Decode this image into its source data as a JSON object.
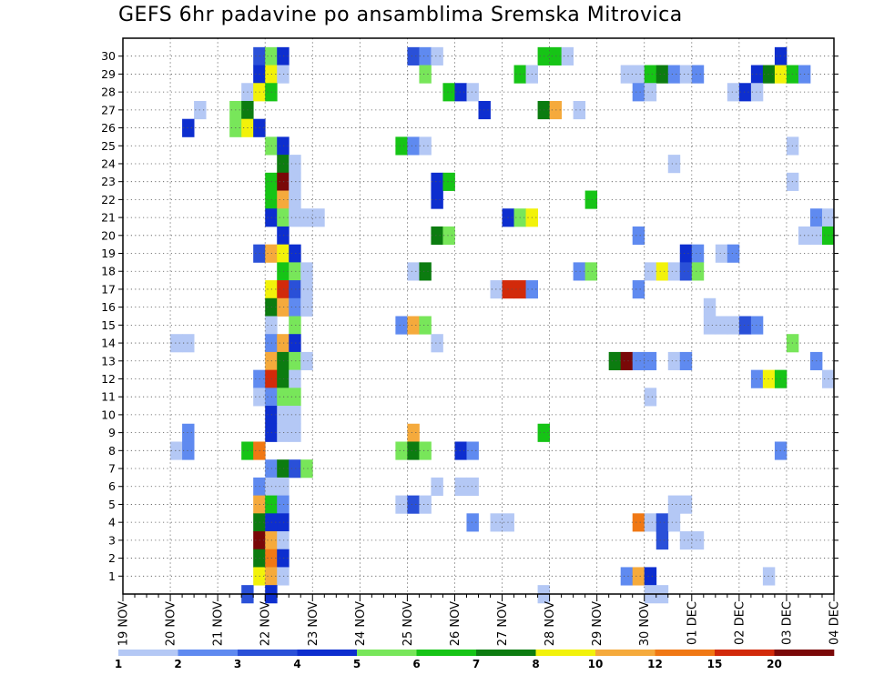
{
  "chart_data": {
    "type": "heatmap",
    "title": "GEFS 6hr padavine po ansamblima Sremska Mitrovica",
    "x_labels": [
      "19 NOV",
      "20 NOV",
      "21 NOV",
      "22 NOV",
      "23 NOV",
      "24 NOV",
      "25 NOV",
      "26 NOV",
      "27 NOV",
      "28 NOV",
      "29 NOV",
      "30 NOV",
      "01 DEC",
      "02 DEC",
      "03 DEC",
      "04 DEC"
    ],
    "y_labels": [
      "1",
      "2",
      "3",
      "4",
      "5",
      "6",
      "7",
      "8",
      "9",
      "10",
      "11",
      "12",
      "13",
      "14",
      "15",
      "16",
      "17",
      "18",
      "19",
      "20",
      "21",
      "22",
      "23",
      "24",
      "25",
      "26",
      "27",
      "28",
      "29",
      "30"
    ],
    "x_range": [
      "19 NOV 00",
      "04 DEC 00"
    ],
    "time_step_hours": 6,
    "members": 30,
    "grid": "dotted",
    "colorbar": {
      "position": "bottom",
      "labels": [
        "1",
        "2",
        "3",
        "4",
        "5",
        "6",
        "7",
        "8",
        "10",
        "12",
        "15",
        "20"
      ],
      "colors": [
        "#b4c8f5",
        "#5f8af0",
        "#2a50d8",
        "#0d2ecf",
        "#78e65a",
        "#16c416",
        "#0c7c10",
        "#f2f20a",
        "#f5aa3c",
        "#f07814",
        "#d22a0a",
        "#7a0808"
      ]
    },
    "cells": [
      [
        "30",
        "21 NOV 18",
        3
      ],
      [
        "30",
        "22 NOV 00",
        5
      ],
      [
        "30",
        "22 NOV 06",
        4
      ],
      [
        "30",
        "25 NOV 00",
        3
      ],
      [
        "30",
        "25 NOV 06",
        2
      ],
      [
        "30",
        "25 NOV 12",
        1
      ],
      [
        "30",
        "27 NOV 18",
        6
      ],
      [
        "30",
        "28 NOV 00",
        6
      ],
      [
        "30",
        "28 NOV 06",
        1
      ],
      [
        "30",
        "02 DEC 18",
        4
      ],
      [
        "29",
        "21 NOV 18",
        4
      ],
      [
        "29",
        "22 NOV 00",
        8
      ],
      [
        "29",
        "22 NOV 06",
        1
      ],
      [
        "29",
        "25 NOV 06",
        5
      ],
      [
        "29",
        "27 NOV 06",
        6
      ],
      [
        "29",
        "27 NOV 12",
        1
      ],
      [
        "29",
        "29 NOV 12",
        1
      ],
      [
        "29",
        "29 NOV 18",
        1
      ],
      [
        "29",
        "30 NOV 00",
        6
      ],
      [
        "29",
        "30 NOV 06",
        7
      ],
      [
        "29",
        "30 NOV 12",
        2
      ],
      [
        "29",
        "30 NOV 18",
        1
      ],
      [
        "29",
        "01 DEC 00",
        2
      ],
      [
        "29",
        "02 DEC 06",
        4
      ],
      [
        "29",
        "02 DEC 12",
        7
      ],
      [
        "29",
        "02 DEC 18",
        8
      ],
      [
        "29",
        "03 DEC 00",
        6
      ],
      [
        "29",
        "03 DEC 06",
        2
      ],
      [
        "28",
        "21 NOV 12",
        1
      ],
      [
        "28",
        "21 NOV 18",
        8
      ],
      [
        "28",
        "22 NOV 00",
        6
      ],
      [
        "28",
        "25 NOV 18",
        6
      ],
      [
        "28",
        "26 NOV 00",
        4
      ],
      [
        "28",
        "26 NOV 06",
        1
      ],
      [
        "28",
        "29 NOV 18",
        2
      ],
      [
        "28",
        "30 NOV 00",
        1
      ],
      [
        "28",
        "01 DEC 18",
        1
      ],
      [
        "28",
        "02 DEC 00",
        4
      ],
      [
        "28",
        "02 DEC 06",
        1
      ],
      [
        "27",
        "20 NOV 12",
        1
      ],
      [
        "27",
        "21 NOV 06",
        5
      ],
      [
        "27",
        "21 NOV 12",
        7
      ],
      [
        "27",
        "26 NOV 12",
        4
      ],
      [
        "27",
        "27 NOV 18",
        7
      ],
      [
        "27",
        "28 NOV 00",
        10
      ],
      [
        "27",
        "28 NOV 12",
        1
      ],
      [
        "26",
        "20 NOV 06",
        4
      ],
      [
        "26",
        "21 NOV 06",
        5
      ],
      [
        "26",
        "21 NOV 12",
        8
      ],
      [
        "26",
        "21 NOV 18",
        4
      ],
      [
        "25",
        "22 NOV 00",
        5
      ],
      [
        "25",
        "22 NOV 06",
        4
      ],
      [
        "25",
        "24 NOV 18",
        6
      ],
      [
        "25",
        "25 NOV 00",
        2
      ],
      [
        "25",
        "25 NOV 06",
        1
      ],
      [
        "25",
        "03 DEC 00",
        1
      ],
      [
        "24",
        "22 NOV 06",
        7
      ],
      [
        "24",
        "22 NOV 12",
        1
      ],
      [
        "24",
        "30 NOV 12",
        1
      ],
      [
        "23",
        "22 NOV 00",
        6
      ],
      [
        "23",
        "22 NOV 06",
        20
      ],
      [
        "23",
        "22 NOV 12",
        1
      ],
      [
        "23",
        "25 NOV 12",
        4
      ],
      [
        "23",
        "25 NOV 18",
        6
      ],
      [
        "23",
        "03 DEC 00",
        1
      ],
      [
        "22",
        "22 NOV 00",
        6
      ],
      [
        "22",
        "22 NOV 06",
        10
      ],
      [
        "22",
        "22 NOV 12",
        1
      ],
      [
        "22",
        "25 NOV 12",
        4
      ],
      [
        "22",
        "28 NOV 18",
        6
      ],
      [
        "21",
        "22 NOV 00",
        4
      ],
      [
        "21",
        "22 NOV 06",
        5
      ],
      [
        "21",
        "22 NOV 12",
        1
      ],
      [
        "21",
        "22 NOV 18",
        1
      ],
      [
        "21",
        "23 NOV 00",
        1
      ],
      [
        "21",
        "27 NOV 00",
        4
      ],
      [
        "21",
        "27 NOV 06",
        5
      ],
      [
        "21",
        "27 NOV 12",
        8
      ],
      [
        "21",
        "03 DEC 12",
        2
      ],
      [
        "21",
        "03 DEC 18",
        1
      ],
      [
        "20",
        "22 NOV 06",
        4
      ],
      [
        "20",
        "25 NOV 12",
        7
      ],
      [
        "20",
        "25 NOV 18",
        5
      ],
      [
        "20",
        "29 NOV 18",
        2
      ],
      [
        "20",
        "03 DEC 06",
        1
      ],
      [
        "20",
        "03 DEC 12",
        1
      ],
      [
        "20",
        "03 DEC 18",
        6
      ],
      [
        "19",
        "21 NOV 18",
        3
      ],
      [
        "19",
        "22 NOV 00",
        10
      ],
      [
        "19",
        "22 NOV 06",
        8
      ],
      [
        "19",
        "22 NOV 12",
        4
      ],
      [
        "19",
        "30 NOV 18",
        4
      ],
      [
        "19",
        "01 DEC 00",
        2
      ],
      [
        "19",
        "01 DEC 12",
        1
      ],
      [
        "19",
        "01 DEC 18",
        2
      ],
      [
        "18",
        "22 NOV 06",
        6
      ],
      [
        "18",
        "22 NOV 12",
        5
      ],
      [
        "18",
        "22 NOV 18",
        1
      ],
      [
        "18",
        "25 NOV 00",
        1
      ],
      [
        "18",
        "25 NOV 06",
        7
      ],
      [
        "18",
        "28 NOV 12",
        2
      ],
      [
        "18",
        "28 NOV 18",
        5
      ],
      [
        "18",
        "30 NOV 00",
        1
      ],
      [
        "18",
        "30 NOV 06",
        8
      ],
      [
        "18",
        "30 NOV 12",
        1
      ],
      [
        "18",
        "30 NOV 18",
        3
      ],
      [
        "18",
        "01 DEC 00",
        5
      ],
      [
        "17",
        "22 NOV 00",
        8
      ],
      [
        "17",
        "22 NOV 06",
        15
      ],
      [
        "17",
        "22 NOV 12",
        3
      ],
      [
        "17",
        "22 NOV 18",
        1
      ],
      [
        "17",
        "26 NOV 18",
        1
      ],
      [
        "17",
        "27 NOV 00",
        15
      ],
      [
        "17",
        "27 NOV 06",
        15
      ],
      [
        "17",
        "27 NOV 12",
        2
      ],
      [
        "17",
        "29 NOV 18",
        2
      ],
      [
        "16",
        "22 NOV 00",
        7
      ],
      [
        "16",
        "22 NOV 06",
        10
      ],
      [
        "16",
        "22 NOV 12",
        2
      ],
      [
        "16",
        "22 NOV 18",
        1
      ],
      [
        "16",
        "01 DEC 06",
        1
      ],
      [
        "15",
        "22 NOV 00",
        1
      ],
      [
        "15",
        "22 NOV 12",
        5
      ],
      [
        "15",
        "24 NOV 18",
        2
      ],
      [
        "15",
        "25 NOV 00",
        10
      ],
      [
        "15",
        "25 NOV 06",
        5
      ],
      [
        "15",
        "01 DEC 06",
        1
      ],
      [
        "15",
        "01 DEC 12",
        1
      ],
      [
        "15",
        "01 DEC 18",
        1
      ],
      [
        "15",
        "02 DEC 00",
        3
      ],
      [
        "15",
        "02 DEC 06",
        2
      ],
      [
        "14",
        "20 NOV 00",
        1
      ],
      [
        "14",
        "20 NOV 06",
        1
      ],
      [
        "14",
        "22 NOV 00",
        2
      ],
      [
        "14",
        "22 NOV 06",
        10
      ],
      [
        "14",
        "22 NOV 12",
        4
      ],
      [
        "14",
        "25 NOV 12",
        1
      ],
      [
        "14",
        "03 DEC 00",
        5
      ],
      [
        "13",
        "22 NOV 00",
        10
      ],
      [
        "13",
        "22 NOV 06",
        7
      ],
      [
        "13",
        "22 NOV 12",
        5
      ],
      [
        "13",
        "22 NOV 18",
        1
      ],
      [
        "13",
        "29 NOV 06",
        7
      ],
      [
        "13",
        "29 NOV 12",
        20
      ],
      [
        "13",
        "29 NOV 18",
        2
      ],
      [
        "13",
        "30 NOV 00",
        2
      ],
      [
        "13",
        "30 NOV 12",
        1
      ],
      [
        "13",
        "30 NOV 18",
        2
      ],
      [
        "13",
        "03 DEC 12",
        2
      ],
      [
        "12",
        "21 NOV 18",
        2
      ],
      [
        "12",
        "22 NOV 00",
        15
      ],
      [
        "12",
        "22 NOV 06",
        7
      ],
      [
        "12",
        "22 NOV 12",
        1
      ],
      [
        "12",
        "02 DEC 06",
        2
      ],
      [
        "12",
        "02 DEC 12",
        8
      ],
      [
        "12",
        "02 DEC 18",
        6
      ],
      [
        "12",
        "03 DEC 18",
        1
      ],
      [
        "11",
        "21 NOV 18",
        1
      ],
      [
        "11",
        "22 NOV 00",
        2
      ],
      [
        "11",
        "22 NOV 06",
        5
      ],
      [
        "11",
        "22 NOV 12",
        5
      ],
      [
        "11",
        "30 NOV 00",
        1
      ],
      [
        "10",
        "22 NOV 00",
        4
      ],
      [
        "10",
        "22 NOV 06",
        1
      ],
      [
        "10",
        "22 NOV 12",
        1
      ],
      [
        "9",
        "20 NOV 06",
        2
      ],
      [
        "9",
        "22 NOV 00",
        4
      ],
      [
        "9",
        "22 NOV 06",
        1
      ],
      [
        "9",
        "22 NOV 12",
        1
      ],
      [
        "9",
        "25 NOV 00",
        10
      ],
      [
        "9",
        "27 NOV 18",
        6
      ],
      [
        "8",
        "20 NOV 00",
        1
      ],
      [
        "8",
        "20 NOV 06",
        2
      ],
      [
        "8",
        "21 NOV 12",
        6
      ],
      [
        "8",
        "21 NOV 18",
        12
      ],
      [
        "8",
        "24 NOV 18",
        5
      ],
      [
        "8",
        "25 NOV 00",
        7
      ],
      [
        "8",
        "25 NOV 06",
        5
      ],
      [
        "8",
        "26 NOV 00",
        4
      ],
      [
        "8",
        "26 NOV 06",
        2
      ],
      [
        "8",
        "02 DEC 18",
        2
      ],
      [
        "7",
        "22 NOV 00",
        2
      ],
      [
        "7",
        "22 NOV 06",
        7
      ],
      [
        "7",
        "22 NOV 12",
        3
      ],
      [
        "7",
        "22 NOV 18",
        5
      ],
      [
        "6",
        "21 NOV 18",
        2
      ],
      [
        "6",
        "22 NOV 00",
        1
      ],
      [
        "6",
        "22 NOV 06",
        1
      ],
      [
        "6",
        "25 NOV 12",
        1
      ],
      [
        "6",
        "26 NOV 00",
        1
      ],
      [
        "6",
        "26 NOV 06",
        1
      ],
      [
        "5",
        "21 NOV 18",
        10
      ],
      [
        "5",
        "22 NOV 00",
        6
      ],
      [
        "5",
        "22 NOV 06",
        2
      ],
      [
        "5",
        "24 NOV 18",
        1
      ],
      [
        "5",
        "25 NOV 00",
        3
      ],
      [
        "5",
        "25 NOV 06",
        1
      ],
      [
        "5",
        "30 NOV 12",
        1
      ],
      [
        "5",
        "30 NOV 18",
        1
      ],
      [
        "4",
        "21 NOV 18",
        7
      ],
      [
        "4",
        "22 NOV 00",
        4
      ],
      [
        "4",
        "22 NOV 06",
        4
      ],
      [
        "4",
        "26 NOV 06",
        2
      ],
      [
        "4",
        "26 NOV 18",
        1
      ],
      [
        "4",
        "27 NOV 00",
        1
      ],
      [
        "4",
        "29 NOV 18",
        12
      ],
      [
        "4",
        "30 NOV 00",
        1
      ],
      [
        "4",
        "30 NOV 06",
        3
      ],
      [
        "4",
        "30 NOV 12",
        1
      ],
      [
        "3",
        "21 NOV 18",
        20
      ],
      [
        "3",
        "22 NOV 00",
        10
      ],
      [
        "3",
        "22 NOV 06",
        1
      ],
      [
        "3",
        "30 NOV 06",
        3
      ],
      [
        "3",
        "30 NOV 18",
        1
      ],
      [
        "3",
        "01 DEC 00",
        1
      ],
      [
        "2",
        "21 NOV 18",
        7
      ],
      [
        "2",
        "22 NOV 00",
        12
      ],
      [
        "2",
        "22 NOV 06",
        4
      ],
      [
        "1",
        "21 NOV 18",
        8
      ],
      [
        "1",
        "22 NOV 00",
        10
      ],
      [
        "1",
        "22 NOV 06",
        1
      ],
      [
        "1",
        "29 NOV 12",
        2
      ],
      [
        "1",
        "29 NOV 18",
        10
      ],
      [
        "1",
        "30 NOV 00",
        4
      ],
      [
        "1",
        "02 DEC 12",
        1
      ],
      [
        "0",
        "21 NOV 12",
        3
      ],
      [
        "0",
        "22 NOV 00",
        4
      ],
      [
        "0",
        "27 NOV 18",
        1
      ],
      [
        "0",
        "30 NOV 00",
        1
      ],
      [
        "0",
        "30 NOV 06",
        1
      ]
    ]
  }
}
